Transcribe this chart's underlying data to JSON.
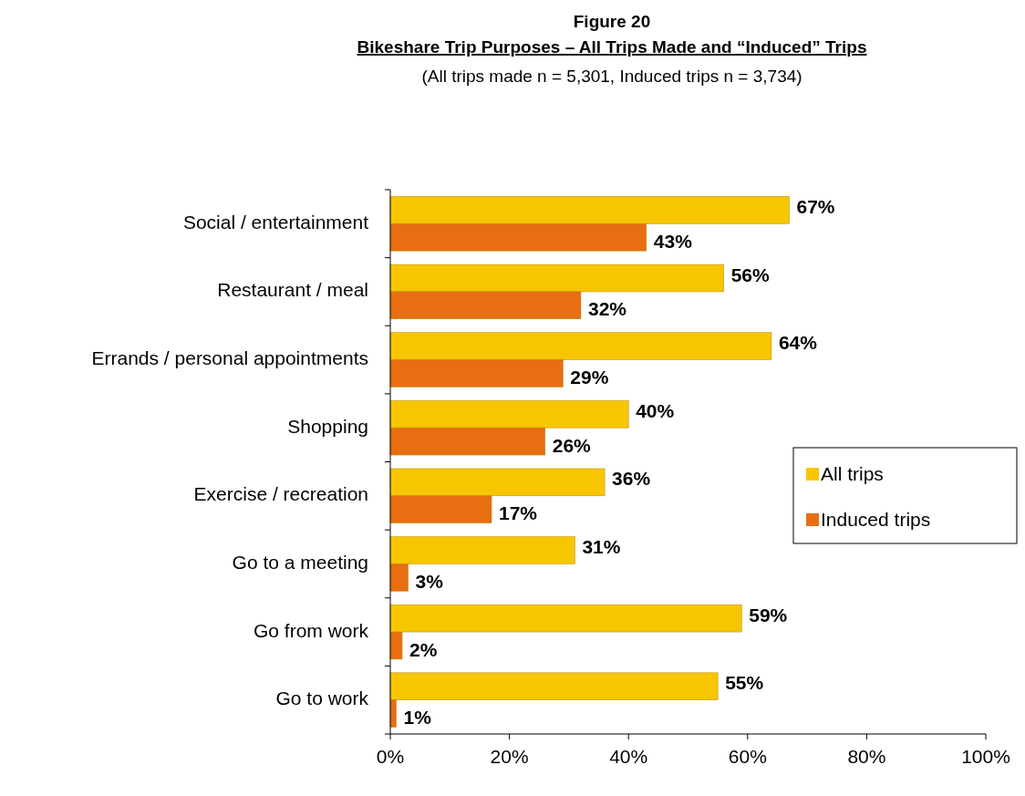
{
  "chart_data": {
    "type": "bar",
    "orientation": "horizontal",
    "title": "Figure 20",
    "subtitle": "Bikeshare Trip Purposes – All Trips Made and “Induced” Trips",
    "annotations": [
      "(All trips made n = 5,301, Induced trips n = 3,734)"
    ],
    "categories": [
      "Social / entertainment",
      "Restaurant / meal",
      "Errands / personal appointments",
      "Shopping",
      "Exercise / recreation",
      "Go to a meeting",
      "Go from work",
      "Go to work"
    ],
    "series": [
      {
        "name": "All trips",
        "color": "#f7c600",
        "values": [
          67,
          56,
          64,
          40,
          36,
          31,
          59,
          55
        ],
        "value_labels": [
          "67%",
          "56%",
          "64%",
          "40%",
          "36%",
          "31%",
          "59%",
          "55%"
        ]
      },
      {
        "name": "Induced trips",
        "color": "#e86e12",
        "values": [
          43,
          32,
          29,
          26,
          17,
          3,
          2,
          1
        ],
        "value_labels": [
          "43%",
          "32%",
          "29%",
          "26%",
          "17%",
          "3%",
          "2%",
          "1%"
        ]
      }
    ],
    "xlim": [
      0,
      100
    ],
    "xticks": [
      {
        "value": 0,
        "label": "0%"
      },
      {
        "value": 20,
        "label": "20%"
      },
      {
        "value": 40,
        "label": "40%"
      },
      {
        "value": 60,
        "label": "60%"
      },
      {
        "value": 80,
        "label": "80%"
      },
      {
        "value": 100,
        "label": "100%"
      }
    ],
    "legend": "right",
    "grid": false
  }
}
